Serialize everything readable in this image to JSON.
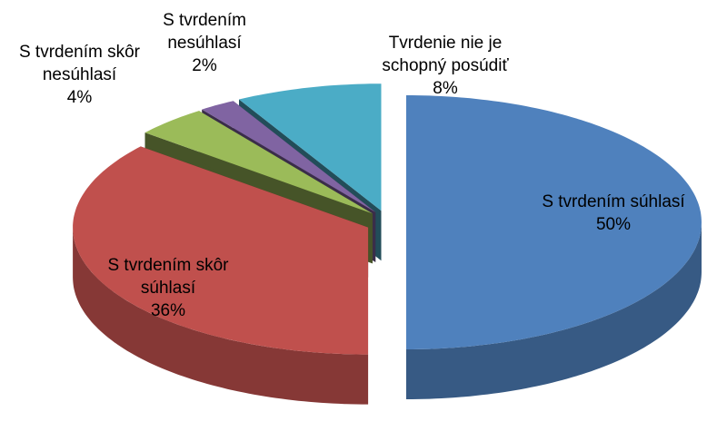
{
  "chart_data": {
    "type": "pie",
    "categories": [
      "S tvrdením súhlasí",
      "S tvrdením skôr súhlasí",
      "S tvrdením skôr nesúhlasí",
      "S tvrdením nesúhlasí",
      "Tvrdenie nie je schopný posúdiť"
    ],
    "values": [
      50,
      36,
      4,
      2,
      8
    ],
    "value_labels": [
      "50%",
      "36%",
      "4%",
      "2%",
      "8%"
    ],
    "colors": [
      "#4f81bd",
      "#c0504d",
      "#9bbb59",
      "#8064a2",
      "#4bacc6"
    ],
    "exploded": true,
    "three_d": true
  }
}
